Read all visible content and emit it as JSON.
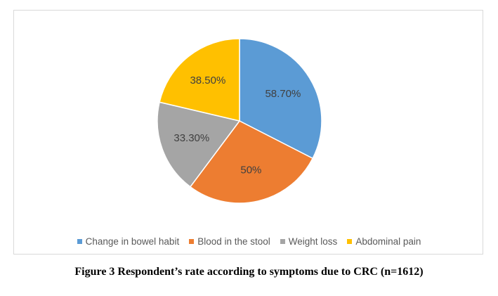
{
  "chart_data": {
    "type": "pie",
    "categories": [
      "Change in bowel habit",
      "Blood in the stool",
      "Weight loss",
      "Abdominal pain"
    ],
    "values": [
      58.7,
      50,
      33.3,
      38.5
    ],
    "labels": [
      "58.70%",
      "50%",
      "33.30%",
      "38.50%"
    ],
    "colors": [
      "#5b9bd5",
      "#ed7d31",
      "#a5a5a5",
      "#ffc000"
    ],
    "legend_position": "bottom",
    "start_angle_deg": 0,
    "direction": "clockwise"
  },
  "caption": "Figure 3 Respondent’s rate according to symptoms due to CRC (n=1612)"
}
